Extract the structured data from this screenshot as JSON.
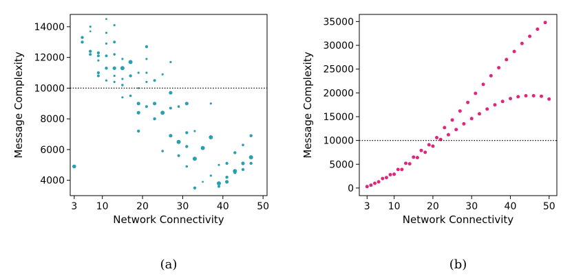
{
  "chart_data": [
    {
      "type": "scatter",
      "caption": "(a)",
      "xlabel": "Network Connectivity",
      "ylabel": "Message Complexity",
      "xlim": [
        2,
        51
      ],
      "ylim": [
        3000,
        14800
      ],
      "xticks": [
        3,
        10,
        20,
        30,
        40,
        50
      ],
      "yticks": [
        4000,
        6000,
        8000,
        10000,
        12000,
        14000
      ],
      "hline": {
        "y": 10000,
        "style": "dotted"
      },
      "color": "#2a9fb0",
      "grid": false,
      "points": [
        [
          3,
          4900,
          2.8
        ],
        [
          5,
          13300,
          2.2
        ],
        [
          5,
          13000,
          2.2
        ],
        [
          7,
          14000,
          1.6
        ],
        [
          7,
          13700,
          1.4
        ],
        [
          7,
          12400,
          2.2
        ],
        [
          7,
          12200,
          2.0
        ],
        [
          9,
          12300,
          2.2
        ],
        [
          9,
          12100,
          2.0
        ],
        [
          9,
          11800,
          1.6
        ],
        [
          9,
          11000,
          2.2
        ],
        [
          9,
          10800,
          2.0
        ],
        [
          11,
          14500,
          1.4
        ],
        [
          11,
          13600,
          1.6
        ],
        [
          11,
          12900,
          1.6
        ],
        [
          11,
          12100,
          2.0
        ],
        [
          11,
          11300,
          2.2
        ],
        [
          11,
          10500,
          1.6
        ],
        [
          13,
          14100,
          1.6
        ],
        [
          13,
          13000,
          2.0
        ],
        [
          13,
          12200,
          1.8
        ],
        [
          13,
          11300,
          2.6
        ],
        [
          13,
          10800,
          1.6
        ],
        [
          13,
          10400,
          1.6
        ],
        [
          15,
          11900,
          1.6
        ],
        [
          15,
          11300,
          3.0
        ],
        [
          15,
          10600,
          1.6
        ],
        [
          15,
          10200,
          1.8
        ],
        [
          15,
          9400,
          1.6
        ],
        [
          17,
          11700,
          3.0
        ],
        [
          17,
          10800,
          2.2
        ],
        [
          17,
          9500,
          1.8
        ],
        [
          19,
          11000,
          1.6
        ],
        [
          19,
          10000,
          1.4
        ],
        [
          19,
          9000,
          2.6
        ],
        [
          19,
          8400,
          2.6
        ],
        [
          19,
          7200,
          2.2
        ],
        [
          21,
          12700,
          2.2
        ],
        [
          21,
          11900,
          1.6
        ],
        [
          21,
          11000,
          1.6
        ],
        [
          21,
          10400,
          1.6
        ],
        [
          21,
          8800,
          2.0
        ],
        [
          23,
          10500,
          2.0
        ],
        [
          23,
          9000,
          2.6
        ],
        [
          23,
          8000,
          2.2
        ],
        [
          25,
          10900,
          1.6
        ],
        [
          25,
          8400,
          3.0
        ],
        [
          25,
          5900,
          1.8
        ],
        [
          27,
          11700,
          1.6
        ],
        [
          27,
          9700,
          2.6
        ],
        [
          27,
          8700,
          2.0
        ],
        [
          27,
          6900,
          2.6
        ],
        [
          29,
          8800,
          1.8
        ],
        [
          29,
          6500,
          3.0
        ],
        [
          29,
          5600,
          2.0
        ],
        [
          31,
          9000,
          2.6
        ],
        [
          31,
          7100,
          2.2
        ],
        [
          31,
          6200,
          2.2
        ],
        [
          31,
          4900,
          1.8
        ],
        [
          33,
          7200,
          1.6
        ],
        [
          33,
          5400,
          3.0
        ],
        [
          33,
          3500,
          2.2
        ],
        [
          35,
          6100,
          3.0
        ],
        [
          35,
          3900,
          1.4
        ],
        [
          37,
          9000,
          1.6
        ],
        [
          37,
          6800,
          3.0
        ],
        [
          37,
          4300,
          1.6
        ],
        [
          39,
          5000,
          1.6
        ],
        [
          39,
          3800,
          3.0
        ],
        [
          39,
          3600,
          2.0
        ],
        [
          41,
          5100,
          2.2
        ],
        [
          41,
          4200,
          2.2
        ],
        [
          41,
          3900,
          2.6
        ],
        [
          43,
          5800,
          2.2
        ],
        [
          43,
          4600,
          3.0
        ],
        [
          43,
          4500,
          2.2
        ],
        [
          45,
          6300,
          1.8
        ],
        [
          45,
          5100,
          2.6
        ],
        [
          45,
          4700,
          2.2
        ],
        [
          47,
          6900,
          2.2
        ],
        [
          47,
          5500,
          3.0
        ],
        [
          47,
          5100,
          2.2
        ]
      ]
    },
    {
      "type": "scatter",
      "caption": "(b)",
      "xlabel": "Network Connectivity",
      "ylabel": "Message Complexity",
      "xlim": [
        1,
        52
      ],
      "ylim": [
        -1600,
        36500
      ],
      "xticks": [
        3,
        10,
        20,
        30,
        40,
        50
      ],
      "yticks": [
        0,
        5000,
        10000,
        15000,
        20000,
        25000,
        30000,
        35000
      ],
      "hline": {
        "y": 10000,
        "style": "dotted"
      },
      "color": "#e0267a",
      "grid": false,
      "series": [
        {
          "x": [
            3,
            4,
            5,
            6,
            7,
            8,
            9,
            10,
            11,
            12,
            13,
            14,
            15,
            16,
            17,
            18,
            19,
            20,
            21,
            22,
            23,
            24,
            25,
            26,
            27,
            28,
            29,
            30,
            31,
            32,
            33,
            34,
            35,
            36,
            37,
            38,
            39,
            40,
            41,
            42,
            43,
            44,
            45,
            46,
            47,
            48,
            49,
            50
          ],
          "values": [
            300,
            600,
            900,
            1300,
            1700,
            2100,
            2600,
            3100,
            3600,
            4200,
            4800,
            5500,
            6100,
            6800,
            7500,
            8300,
            9100,
            9900,
            10700,
            11500,
            12400,
            13300,
            14300,
            15300,
            16200,
            17300,
            18300,
            19400,
            14600,
            15200,
            15700,
            16200,
            16700,
            17200,
            17600,
            18100,
            18500,
            18800,
            19100,
            19300,
            19500,
            19500,
            19400,
            19200,
            18900,
            18600,
            34800,
            18600
          ]
        }
      ],
      "upper_branch": {
        "x": [
          23,
          25,
          27,
          29,
          31,
          33,
          35,
          37,
          39,
          41,
          43,
          45,
          47,
          49
        ],
        "values": [
          12700,
          14300,
          16200,
          18000,
          19900,
          21800,
          23600,
          25300,
          27000,
          28700,
          30400,
          31900,
          33400,
          34800
        ]
      },
      "lower_branch": {
        "x": [
          24,
          26,
          28,
          30,
          32,
          34,
          36,
          38,
          40,
          42,
          44,
          46,
          48,
          50
        ],
        "values": [
          11200,
          12300,
          13500,
          14600,
          15600,
          16600,
          17500,
          18200,
          18800,
          19200,
          19400,
          19400,
          19300,
          18700
        ]
      },
      "low_part": {
        "x": [
          3,
          4,
          5,
          6,
          7,
          8,
          9,
          10,
          11,
          12,
          13,
          14,
          15,
          16,
          17,
          18,
          19,
          20,
          21,
          22
        ],
        "values": [
          300,
          600,
          1000,
          1300,
          2000,
          2200,
          2800,
          2900,
          3900,
          3900,
          5200,
          5100,
          6500,
          6400,
          7900,
          7500,
          9100,
          8800,
          10600,
          10200
        ]
      }
    }
  ]
}
